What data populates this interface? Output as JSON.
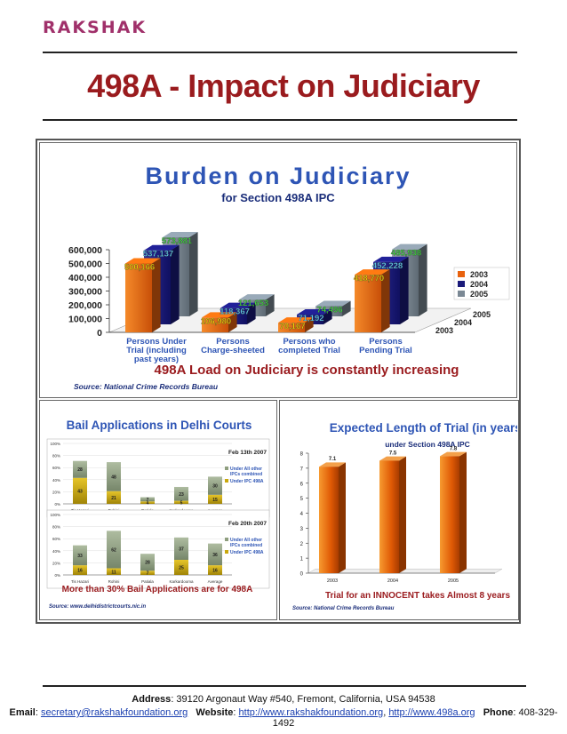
{
  "brand": "RAKSHAK",
  "page_title": "498A - Impact on Judiciary",
  "footer": {
    "address_label": "Address",
    "address": ": 39120 Argonaut Way #540, Fremont, California, USA 94538",
    "email_label": "Email",
    "email": "secretary@rakshakfoundation.org",
    "website_label": "Website",
    "website1": "http://www.rakshakfoundation.org",
    "website_sep": ", ",
    "website2": "http://www.498a.org",
    "phone_label": "Phone",
    "phone": ": 408-329-1492"
  },
  "colors": {
    "title_red": "#9a1b1e",
    "brand": "#a0306a",
    "orange": "#e8620e",
    "navy": "#1a1a7a",
    "gray": "#7a8894",
    "olive": "#c9a80c",
    "sage": "#8e9e7e",
    "blue_title": "#2e55b5"
  },
  "chart_data": [
    {
      "type": "bar",
      "title": "Burden on Judiciary",
      "subtitle": "for Section 498A IPC",
      "categories": [
        "Persons Under Trial (including past years)",
        "Persons Charge-sheeted",
        "Persons who completed Trial",
        "Persons Pending Trial"
      ],
      "category_lines": [
        [
          "Persons Under",
          "Trial (including",
          "past years)"
        ],
        [
          "Persons",
          "Charge-sheeted"
        ],
        [
          "Persons who",
          "completed Trial"
        ],
        [
          "Persons",
          "Pending Trial"
        ]
      ],
      "series": [
        {
          "name": "2003",
          "values": [
            500166,
            106980,
            70167,
            418770
          ],
          "labels": [
            "500,166",
            "106,980",
            "70,167",
            "418,770"
          ],
          "color": "#e8620e"
        },
        {
          "name": "2004",
          "values": [
            537137,
            118367,
            71192,
            452228
          ],
          "labels": [
            "537,137",
            "118,367",
            "71,192",
            "452,228"
          ],
          "color": "#1a1a7a"
        },
        {
          "name": "2005",
          "values": [
            573881,
            121653,
            74496,
            485938
          ],
          "labels": [
            "573,881",
            "121,653",
            "74,496",
            "485,938"
          ],
          "color": "#7a8894"
        }
      ],
      "y_ticks": [
        "0",
        "100,000",
        "200,000",
        "300,000",
        "400,000",
        "500,000",
        "600,000"
      ],
      "ylim": [
        0,
        600000
      ],
      "depth_labels": [
        "2005",
        "2004",
        "2003"
      ],
      "legend": [
        "2003",
        "2004",
        "2005"
      ],
      "legend_position": "right",
      "caption": "498A Load on Judiciary is constantly increasing",
      "source": "Source: National Crime Records Bureau"
    },
    {
      "type": "bar",
      "stacked": true,
      "percent": true,
      "title": "Bail Applications in Delhi Courts",
      "categories": [
        "Tis Hazari",
        "Rohini",
        "Patiala",
        "Karkardooma",
        "Average"
      ],
      "y_ticks": [
        "0%",
        "20%",
        "40%",
        "60%",
        "80%",
        "100%"
      ],
      "panels": [
        {
          "date": "Feb 13th 2007",
          "series": [
            {
              "name": "Under IPC 498A",
              "values": [
                43,
                21,
                4,
                5,
                15
              ]
            },
            {
              "name": "Under All other IPCs combined",
              "values": [
                28,
                48,
                7,
                23,
                30
              ]
            }
          ]
        },
        {
          "date": "Feb 20th 2007",
          "series": [
            {
              "name": "Under IPC 498A",
              "values": [
                16,
                11,
                7,
                25,
                16
              ]
            },
            {
              "name": "Under All other IPCs combined",
              "values": [
                33,
                62,
                28,
                37,
                36
              ]
            }
          ]
        }
      ],
      "legend": [
        "Under All other IPCs combined",
        "Under IPC 498A"
      ],
      "caption": "More than 30% Bail Applications are for 498A",
      "source": "Source: www.delhidistrictcourts.nic.in"
    },
    {
      "type": "bar",
      "title": "Expected Length of Trial (in years)",
      "subtitle": "under Section 498A IPC",
      "categories": [
        "2003",
        "2004",
        "2005"
      ],
      "values": [
        7.1,
        7.5,
        7.8
      ],
      "labels": [
        "7.1",
        "7.5",
        "7.8"
      ],
      "ylim": [
        0,
        8
      ],
      "y_ticks": [
        "0",
        "1",
        "2",
        "3",
        "4",
        "5",
        "6",
        "7",
        "8"
      ],
      "caption": "Trial for an INNOCENT takes Almost 8 years",
      "source": "Source: National Crime Records Bureau"
    }
  ]
}
